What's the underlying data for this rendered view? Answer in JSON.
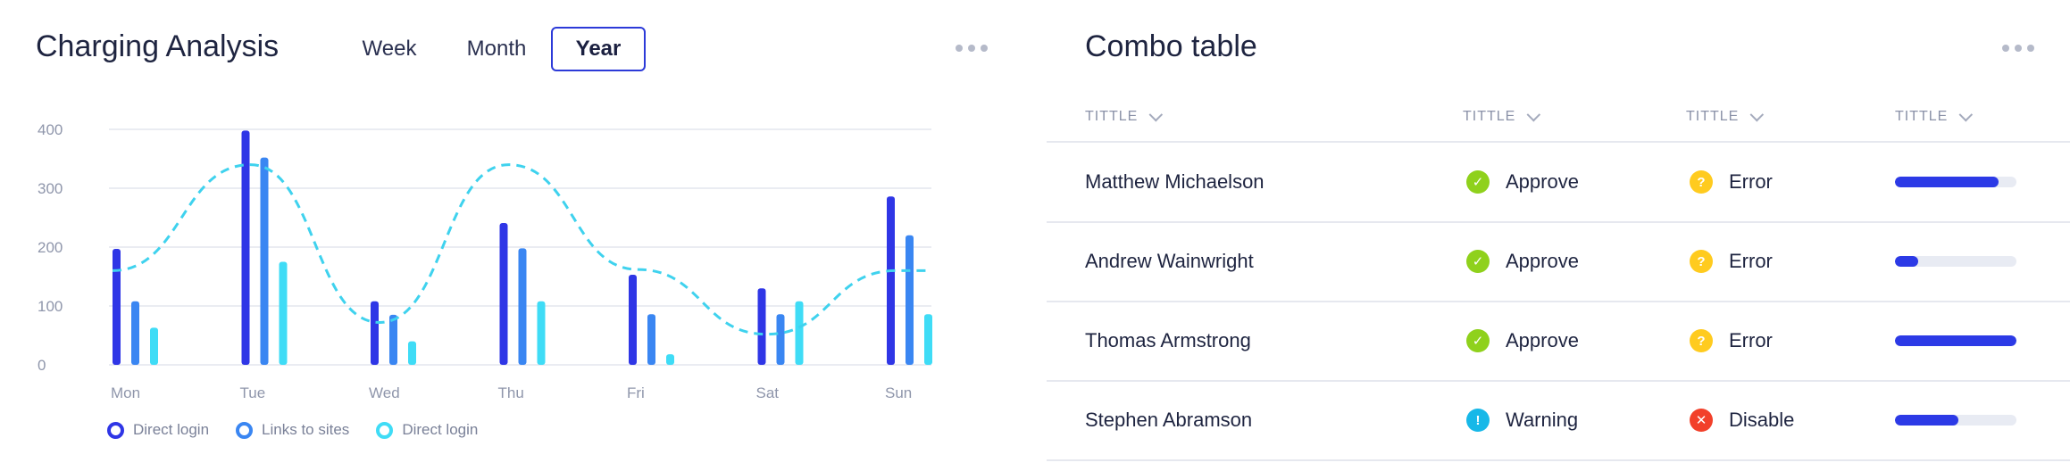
{
  "left_card": {
    "title": "Charging Analysis",
    "tabs": [
      {
        "label": "Week",
        "active": false
      },
      {
        "label": "Month",
        "active": false
      },
      {
        "label": "Year",
        "active": true
      }
    ]
  },
  "chart_data": {
    "type": "bar",
    "categories": [
      "Mon",
      "Tue",
      "Wed",
      "Thu",
      "Fri",
      "Sat",
      "Sun"
    ],
    "ylim": [
      0,
      400
    ],
    "yticks": [
      0,
      100,
      200,
      300,
      400
    ],
    "series": [
      {
        "name": "Direct login",
        "color": "#2f36e6",
        "values": [
          197,
          398,
          108,
          241,
          153,
          130,
          286
        ]
      },
      {
        "name": "Links to sites",
        "color": "#3a86f2",
        "values": [
          108,
          352,
          85,
          198,
          86,
          86,
          220
        ]
      },
      {
        "name": "Direct login",
        "color": "#3fdcf6",
        "values": [
          63,
          175,
          40,
          108,
          18,
          108,
          86
        ]
      }
    ],
    "trend_line": {
      "color": "#3fd2ee",
      "values": [
        160,
        340,
        72,
        340,
        162,
        52,
        160
      ]
    }
  },
  "legend": [
    {
      "label": "Direct login",
      "color": "#2f36e6"
    },
    {
      "label": "Links to sites",
      "color": "#3a86f2"
    },
    {
      "label": "Direct login",
      "color": "#3fdcf6"
    }
  ],
  "right_card": {
    "title": "Combo table",
    "headers": [
      "TITTLE",
      "TITTLE",
      "TITTLE",
      "TITTLE"
    ],
    "rows": [
      {
        "name": "Matthew Michaelson",
        "status1": "Approve",
        "status1_icon": "check-icon",
        "status1_color": "#8fd11c",
        "status2": "Error",
        "status2_icon": "question-icon",
        "status2_color": "#ffcb1f",
        "progress": 0.85
      },
      {
        "name": "Andrew Wainwright",
        "status1": "Approve",
        "status1_icon": "check-icon",
        "status1_color": "#8fd11c",
        "status2": "Error",
        "status2_icon": "question-icon",
        "status2_color": "#ffcb1f",
        "progress": 0.19
      },
      {
        "name": "Thomas Armstrong",
        "status1": "Approve",
        "status1_icon": "check-icon",
        "status1_color": "#8fd11c",
        "status2": "Error",
        "status2_icon": "question-icon",
        "status2_color": "#ffcb1f",
        "progress": 1.0
      },
      {
        "name": "Stephen Abramson",
        "status1": "Warning",
        "status1_icon": "exclamation-icon",
        "status1_color": "#17b8e8",
        "status2": "Disable",
        "status2_icon": "x-icon",
        "status2_color": "#f2402a",
        "progress": 0.52
      }
    ]
  }
}
